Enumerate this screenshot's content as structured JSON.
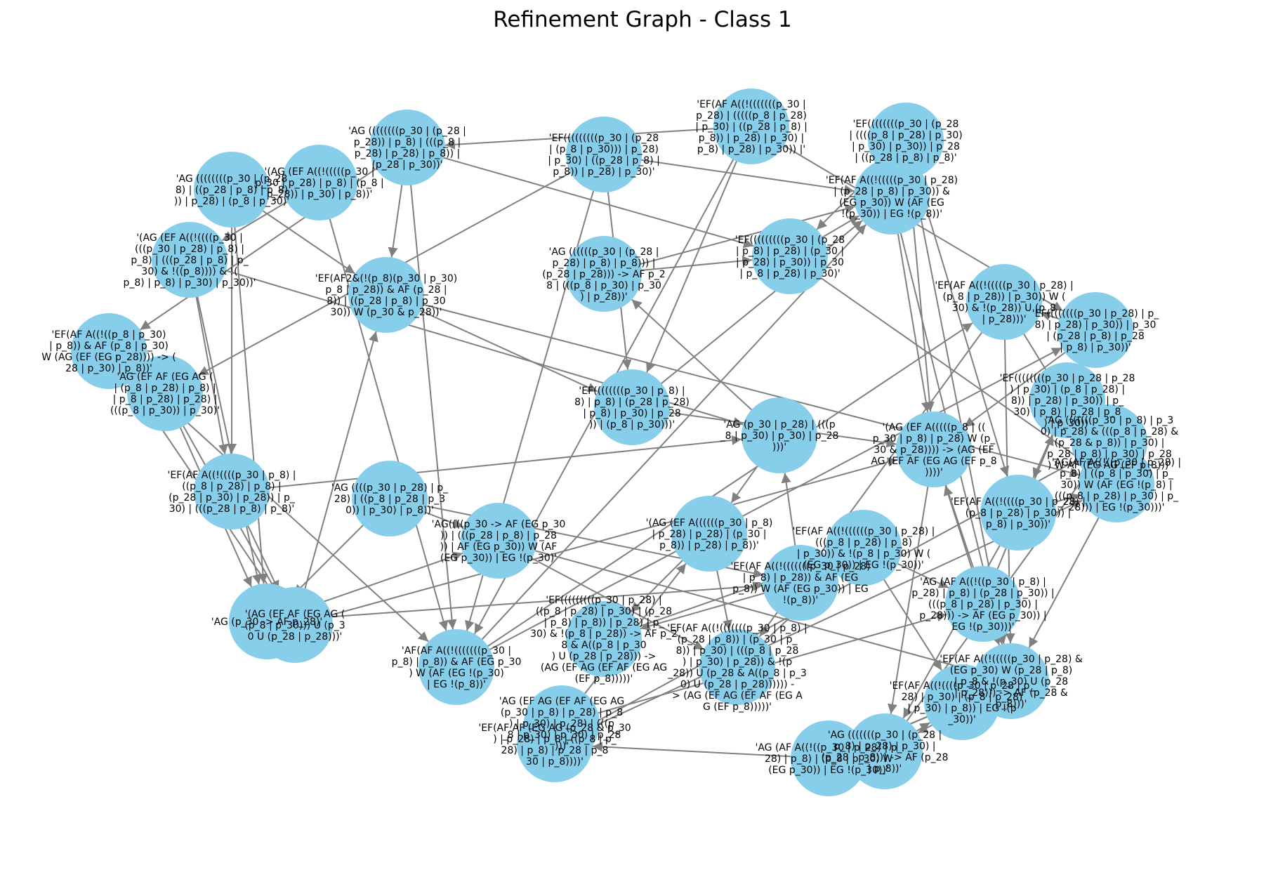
{
  "figure": {
    "title": "Refinement Graph - Class 1"
  },
  "colors": {
    "background": "#ffffff",
    "node_fill": "#87ceeb",
    "edge": "#808080",
    "text": "#000000"
  },
  "graph": {
    "type": "directed",
    "nodes": [
      {
        "id": 0,
        "label": "'EF(AF A((!(((((((p_30 |\np_28) | (((((p_8 | p_28)\n| p_30) | ((p_28 | p_8) |\np_8)) | p_28) | p_30) |\np_8) | p_28) | p_30)) |'"
      },
      {
        "id": 1,
        "label": "'EF((((((((p_30 | (p_28\n| ((((p_8 | p_28) | p_30)\n| p_30) | p_30)) | p_28\n| ((p_28 | p_8) | p_8)'"
      },
      {
        "id": 2,
        "label": "'EF(((((((((p_30 | (p_28\n| (p_8 | p_30))) | p_28)\n| p_30) | ((p_28 | p_8) |\np_8)) | p_28) | p_30)'"
      },
      {
        "id": 3,
        "label": "'AG ((((((((p_30 | (p_28 |\np_28)) | p_8) | (((p_8 |\np_28) | p_28) | p_8)) |\n(p_28 | p_30))'"
      },
      {
        "id": 4,
        "label": "'(AG (EF A((!(((((p_30 |\np_30 | p_28) | p_8) | (p_8 |\np_28)) | p_30) | p_8))'"
      },
      {
        "id": 5,
        "label": "'AG ((((((((p_30 | (p_28\n8) | ((p_28 | p_8) | p_8)\n)) | p_28) | (p_8 | p_30)'"
      },
      {
        "id": 6,
        "label": "'(AG (EF A((!((((p_30 |\n(((p_30 | p_28) | p_8) |\np_8) | (((p_28 | p_8) | p_\n30) & !((p_8)))) & !(\np_8) | p_8) | p_30) | p_30))'"
      },
      {
        "id": 7,
        "label": "'EF(AF A((!((p_8 | p_30)\n| p_8)) & AF (p_8 | p_30)\nW (AG (EF (EG p_28)))) -> (\n28 | p_30) | p_8))'"
      },
      {
        "id": 8,
        "label": "'AG (EF AF (EG AG (\n| (p_8 | p_28) | p_8) |\n| p_8 | p_28) | p_28) |\n(((p_8 | p_30)) | p_30)'"
      },
      {
        "id": 9,
        "label": "'EF(AF A((!((((p_30 | p_8) |\n((p_8 | p_28) | p_8) |\n(p_28 | p_30) | p_28)) | p_\n30) | (((p_28 | p_8) | p_8)'"
      },
      {
        "id": 10,
        "label": "'(AG (EF AF (EG AG (\n(p_8 | p_30))) U (p_3\n0 U (p_28 | p_28)))'"
      },
      {
        "id": 11,
        "label": "'AG ((((p_30 | p_28) | p_\n28) | ((p_8 | p_28 | p_3\n0)) | p_30) | p_8))'"
      },
      {
        "id": 12,
        "label": "'EF(AF2&(!(p_8)(p_30 | p_30)\np_8 | p_28)) & AF (p_28 |\n8)) | ((p_28 | p_8) | p_30\n30)) W (p_30 & p_28))'"
      },
      {
        "id": 13,
        "label": "'AG ((((((p_30 | (p_28 |\np_28) | p_8) | p_8))) |\n(p_28 | p_28))) -> AF p_2\n8 | (((p_8 | p_30) | p_30\n) | p_28))'"
      },
      {
        "id": 14,
        "label": "'AG (p_30 -> AF p_28)'"
      },
      {
        "id": 15,
        "label": "'AG((((p_30 -> AF (EG p_30\n)) | (((p_28 | p_8) | p_28\n)) | AF (EG p_30)) W (AF\n(EG p_30)) | EG !(p_30)'"
      },
      {
        "id": 16,
        "label": "'AF(AF A((!(((((((p_30 |\np_8) | p_8)) & AF (EG p_30\n) W (AF (EG !(p_30)\n| EG !(p_8))'"
      },
      {
        "id": 17,
        "label": "'EF((((((((p_30 | p_8) |\n8) | p_8) | (p_28 | p_28)\n| p_8) | p_30) | p_28\n)) | (p_8 | p_30)))'"
      },
      {
        "id": 18,
        "label": "'EF(((((((((p_30 | (p_28\n| p_8) | p_28) | (p_30 |\n| p_28) | p_30)) | p_30\n| p_8 | p_28) | p_30)'"
      },
      {
        "id": 19,
        "label": "'EF(AF A((!(((((p_30 | p_28)\n| (p_28 | p_8) | p_30)) &\n(EG p_30)) W (AF (EG\n!(p_30)) | EG !(p_8))'"
      },
      {
        "id": 20,
        "label": "'EF(AF A((!(((((p_30 | p_28) |\n(p_8 | p_28)) | p_30)) W (\n30) & !(p_28)) U (p_8\n| p_28)))'"
      },
      {
        "id": 21,
        "label": "'AG (p_30 | p_28) | (((p\n_8 | p_30) | p_30) | p_28\n)))'"
      },
      {
        "id": 22,
        "label": "'(AG (EF A(((((p_8 | ((\np_30 | p_8) | p_28) W (p_\n30 & p_28)))) -> (AG (EF\nAG (EF AF (EG AG (EF p_8\n))))'"
      },
      {
        "id": 23,
        "label": "'EF(AF A((!((((p_30 | p_28) |\n(p_8 | p_28) | p_30)) |\np_8) | p_30))'"
      },
      {
        "id": 24,
        "label": "'AG(AF A((!((p_30 | p_28) |\np_8) | ((p_8 | p_30) | p_\n30)) W (AF (EG !(p_8) |\n(((p_8 | p_28) | p_30) | p_\n28))) | EG !(p_30)))'"
      },
      {
        "id": 25,
        "label": "'EF((((((((p_30 | p_28) | p_\n8) | p_28) | p_30)) | p_30\n| (p_28 | p_8) | p_28\n| p_8) | p_30))'"
      },
      {
        "id": 26,
        "label": "'EF(AF A((!(((((p_30 | p_28) &\n(EG p_30) W (p_28 | p_8)\n| p_8 & !(p_30) U (p_28\n| p_28))) -> AF (p_28 &\np_8)))'"
      },
      {
        "id": 27,
        "label": "'AG (((((((p_30 | (p_28 |\np_8) | p_28) | p_30) |\n(p_28 | p_8))) -> AF (p_28\n| p_8))'"
      },
      {
        "id": 28,
        "label": "'EF(AF A((!(((((((p_30 | p_28)\n| p_8) | p_28)) & AF (EG\np_8)) W (AF (EG p_30)) | EG\n!(p_8))'"
      },
      {
        "id": 29,
        "label": "'EF(AF A((!(((((((p_30 | p_8) |\n(p_28 | p_8)) | (p_30 | p_\n8)) | p_30) | (((p_8 | p_28\n) | p_30) | p_28)) & !(p\n_28)) U (p_28 & A((p_8 | p_3\n0) U (p_28 | p_28)))))) -\n> (AG (EF AG (EF AF (EG A\nG (EF p_8)))))'"
      },
      {
        "id": 30,
        "label": "'(AG (EF A((((((p_30 | p_8)\n| p_28) | p_28) | (p_30 |\np_8)) | p_28) | p_8))'"
      },
      {
        "id": 31,
        "label": "'AG (EF AG (EF AF (EG AG\n(p_30 | p_8) | p_28) | p_8\n) | p_30) | p_28) | (((p\n_8 | p_30) | p_30) | p_28\n)))'"
      },
      {
        "id": 32,
        "label": "'EF(((((((((p_30 | p_28) |\n((p_8 | p_28) | p_30) | (p_28\n| p_8) | p_8)) | p_28) | p_\n30) & !(p_8 | p_28)) -> AF p_2\n8 & A((p_8 | p_30\n) U (p_28 | p_28))) ->\n(AG (EF AG (EF AF (EG AG\n(EF p_8)))))'"
      },
      {
        "id": 33,
        "label": "'EF(AF A((!((((((p_30 | p_28) |\n(((p_8 | p_28) | p_8)\n| p_30)) & !(p_8 | p_30) W (\n(EG p_30)) | EG !(p_30))'"
      },
      {
        "id": 34,
        "label": "'AG (AF A((!((p_30 | p_8) |\np_28) | p_8) | (p_28 | p_30)) |\n(((p_8 | p_28) | p_30) |\np_28))) -> AF (EG p_30)) |\nEG !(p_30)))'"
      },
      {
        "id": 35,
        "label": "'EF((((((((p_30 | p_28 | p_28\n) | p_30) | (p_8 | p_28) |\n8)) | p_28) | p_30)) | p_\n30) | p_8) | p_28 | p_8\n) | p_30))'"
      },
      {
        "id": 36,
        "label": "'AG (((((((p_30 | p_8) | p_3\n0) | p_28) & (((p_8 | p_28) &\n(p_28 & p_8)) | p_30) |\np_28 | p_8) | p_30) | p_28\n) W AF (EG AG (EF p_8)))'"
      },
      {
        "id": 37,
        "label": "'EF(AF A((!((((p_30 | p_28 | p_\n28) | p_30) | (p_8 | p_28)\n| p_30) | p_8)) | EG !(p\n_30))'"
      },
      {
        "id": 38,
        "label": "'AG (AF A((!((p_30 | p_28) | p_\n28) | p_8) | (p_8 | p_30) W\n(EG p_30)) | EG !(p_30))'"
      },
      {
        "id": 39,
        "label": "'EF(AF AF (EG AG (p_28 & p_30\n) | p_28) | p_8 | ((p_8 | p_\n28) | p_8) | p_28 | p_8\n30 | p_8))))'"
      }
    ],
    "edges": [
      [
        0,
        17
      ],
      [
        0,
        16
      ],
      [
        0,
        25
      ],
      [
        1,
        18
      ],
      [
        1,
        22
      ],
      [
        1,
        26
      ],
      [
        2,
        17
      ],
      [
        2,
        16
      ],
      [
        2,
        19
      ],
      [
        3,
        12
      ],
      [
        3,
        16
      ],
      [
        3,
        18
      ],
      [
        4,
        6
      ],
      [
        4,
        16
      ],
      [
        5,
        12
      ],
      [
        5,
        14
      ],
      [
        6,
        9
      ],
      [
        6,
        14
      ],
      [
        7,
        16
      ],
      [
        7,
        10
      ],
      [
        8,
        14
      ],
      [
        9,
        10
      ],
      [
        9,
        21
      ],
      [
        10,
        22
      ],
      [
        10,
        12
      ],
      [
        11,
        15
      ],
      [
        11,
        28
      ],
      [
        12,
        17
      ],
      [
        12,
        24
      ],
      [
        13,
        18
      ],
      [
        13,
        19
      ],
      [
        14,
        15
      ],
      [
        14,
        28
      ],
      [
        15,
        26
      ],
      [
        16,
        19
      ],
      [
        16,
        20
      ],
      [
        17,
        22
      ],
      [
        17,
        19
      ],
      [
        18,
        24
      ],
      [
        18,
        19
      ],
      [
        19,
        22
      ],
      [
        19,
        26
      ],
      [
        20,
        29
      ],
      [
        20,
        24
      ],
      [
        21,
        13
      ],
      [
        21,
        30
      ],
      [
        22,
        26
      ],
      [
        22,
        27
      ],
      [
        23,
        27
      ],
      [
        23,
        24
      ],
      [
        24,
        26
      ],
      [
        24,
        36
      ],
      [
        25,
        35
      ],
      [
        25,
        22
      ],
      [
        26,
        27
      ],
      [
        26,
        38
      ],
      [
        27,
        37
      ],
      [
        28,
        32
      ],
      [
        28,
        21
      ],
      [
        29,
        33
      ],
      [
        30,
        32
      ],
      [
        30,
        29
      ],
      [
        31,
        34
      ],
      [
        31,
        30
      ],
      [
        32,
        33
      ],
      [
        33,
        34
      ],
      [
        34,
        35
      ],
      [
        35,
        23
      ],
      [
        36,
        39
      ],
      [
        37,
        38
      ],
      [
        38,
        39
      ],
      [
        39,
        24
      ],
      [
        2,
        8
      ],
      [
        5,
        9
      ],
      [
        8,
        10
      ],
      [
        11,
        14
      ],
      [
        15,
        29
      ],
      [
        27,
        36
      ],
      [
        34,
        22
      ],
      [
        33,
        37
      ],
      [
        3,
        7
      ],
      [
        25,
        20
      ],
      [
        0,
        3
      ],
      [
        1,
        23
      ],
      [
        6,
        21
      ],
      [
        16,
        25
      ],
      [
        20,
        26
      ]
    ]
  }
}
